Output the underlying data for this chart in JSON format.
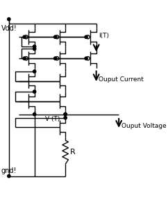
{
  "bg_color": "#ffffff",
  "line_color": "#000000",
  "vdd_label": "Vdd!",
  "gnd_label": "gnd!",
  "it_label": "I(T)",
  "vt_label": "V (T)",
  "ouput_current_label": "Ouput Current",
  "ouput_voltage_label": "Ouput Voltage",
  "r_label": "R",
  "fig_width": 2.42,
  "fig_height": 2.88,
  "dpi": 100
}
